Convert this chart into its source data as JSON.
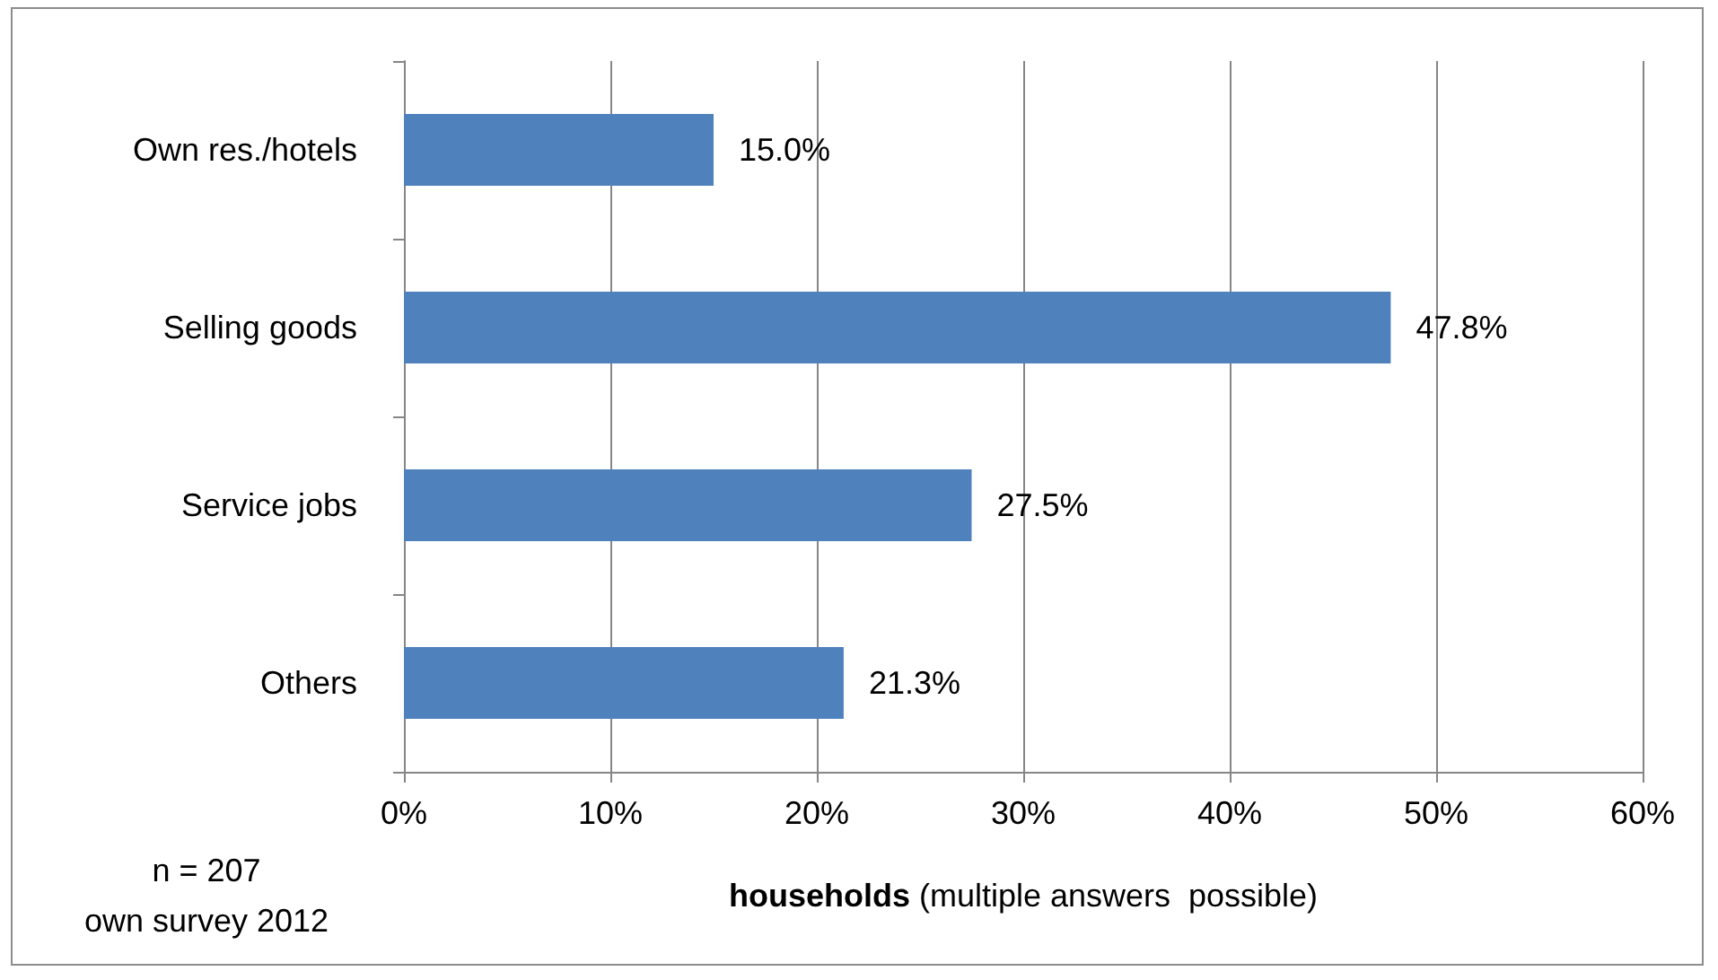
{
  "chart_data": {
    "type": "bar",
    "orientation": "horizontal",
    "categories": [
      "Own res./hotels",
      "Selling goods",
      "Service jobs",
      "Others"
    ],
    "values": [
      15.0,
      47.8,
      27.5,
      21.3
    ],
    "value_labels": [
      "15.0%",
      "47.8%",
      "27.5%",
      "21.3%"
    ],
    "color": "#4f81bd",
    "xlim": [
      0,
      60
    ],
    "xticks": [
      {
        "value": 0,
        "label": "0%"
      },
      {
        "value": 10,
        "label": "10%"
      },
      {
        "value": 20,
        "label": "20%"
      },
      {
        "value": 30,
        "label": "30%"
      },
      {
        "value": 40,
        "label": "40%"
      },
      {
        "value": 50,
        "label": "50%"
      },
      {
        "value": 60,
        "label": "60%"
      }
    ],
    "xlabel": "households (multiple answers  possible)",
    "annotations": [
      "n = 207",
      "own survey 2012"
    ],
    "grid": "x"
  }
}
